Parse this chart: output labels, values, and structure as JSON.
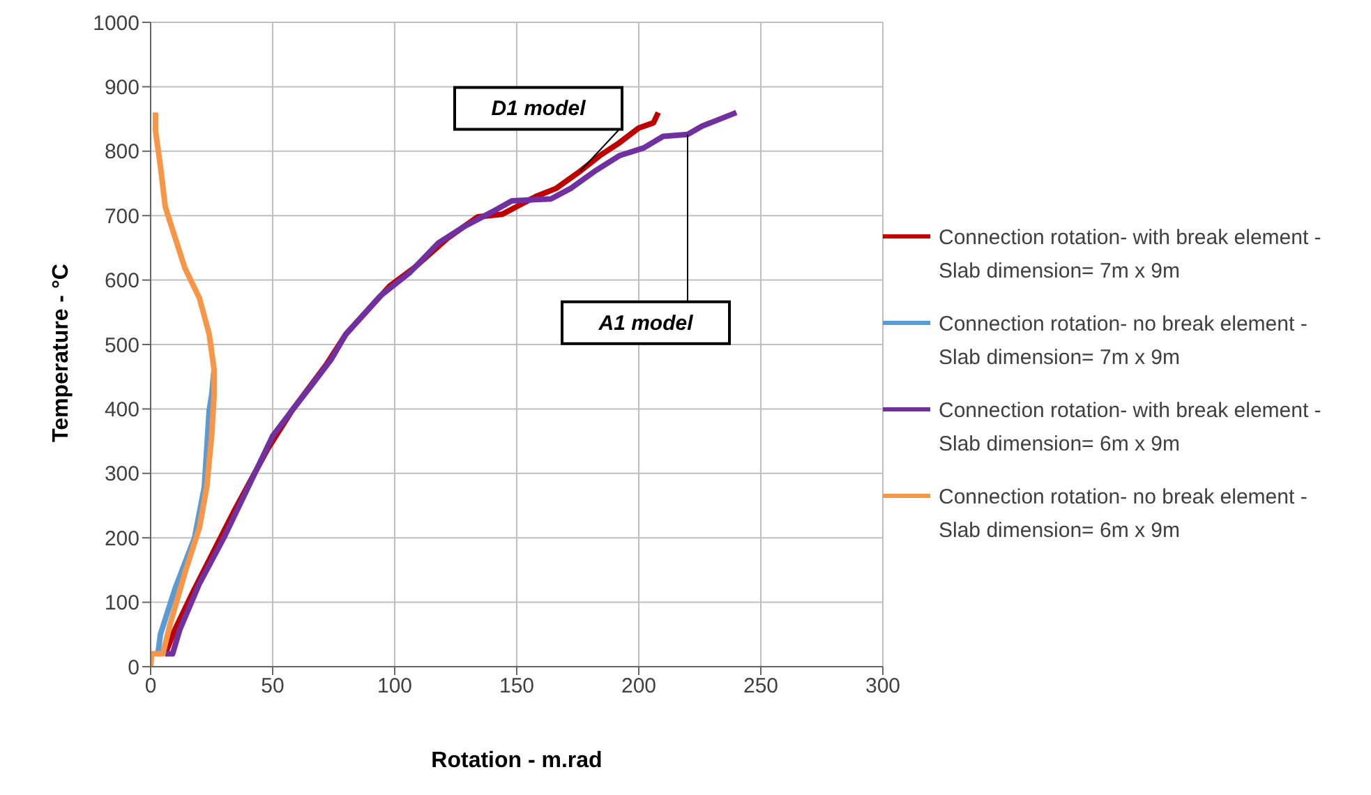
{
  "chart_data": {
    "type": "line",
    "xlabel": "Rotation - m.rad",
    "ylabel": "Temperature - °C",
    "xlim": [
      0,
      300
    ],
    "xticks": [
      0,
      50,
      100,
      150,
      200,
      250,
      300
    ],
    "ylim": [
      0,
      1000
    ],
    "yticks": [
      0,
      100,
      200,
      300,
      400,
      500,
      600,
      700,
      800,
      900,
      1000
    ],
    "grid": true,
    "legend": "right",
    "marker": "none",
    "line_style": "solid",
    "series": [
      {
        "name": "Connection rotation- with break element - Slab dimension= 7m x 9m",
        "color": "#c00000",
        "x": [
          6,
          10,
          18,
          34,
          48,
          58,
          72,
          80,
          98,
          108,
          122,
          134,
          144,
          150,
          158,
          166,
          176,
          184,
          192,
          200,
          206,
          208
        ],
        "values": [
          20,
          58,
          121,
          240,
          338,
          398,
          469,
          516,
          591,
          619,
          666,
          698,
          702,
          714,
          730,
          742,
          769,
          793,
          813,
          836,
          844,
          860
        ]
      },
      {
        "name": "Connection rotation- no break element - Slab dimension= 7m x 9m",
        "color": "#5b9bd5",
        "x": [
          3,
          4,
          10,
          18,
          22,
          24,
          25,
          26
        ],
        "values": [
          20,
          50,
          121,
          200,
          279,
          398,
          421,
          461
        ]
      },
      {
        "name": "Connection rotation- with break element - Slab dimension= 6m x 9m",
        "color": "#7030a0",
        "x": [
          6,
          9,
          12,
          20,
          30,
          40,
          50,
          58,
          66,
          74,
          80,
          94,
          106,
          118,
          128,
          140,
          148,
          164,
          172,
          182,
          192,
          202,
          210,
          220,
          226,
          240
        ],
        "values": [
          20,
          20,
          58,
          129,
          200,
          279,
          358,
          398,
          437,
          477,
          516,
          575,
          611,
          658,
          682,
          706,
          723,
          726,
          742,
          769,
          793,
          805,
          823,
          826,
          839,
          860
        ]
      },
      {
        "name": "Connection rotation- no break element - Slab dimension= 6m x 9m",
        "color": "#f79646",
        "x": [
          0,
          0.4,
          5,
          8,
          14,
          20,
          23,
          25,
          26,
          26,
          24,
          20,
          14,
          8,
          6,
          4,
          2,
          2
        ],
        "values": [
          0,
          20,
          20,
          66,
          145,
          216,
          279,
          358,
          421,
          461,
          516,
          572,
          619,
          690,
          714,
          777,
          832,
          860
        ]
      }
    ],
    "annotations": [
      {
        "text": "D1 model",
        "x": 176,
        "y": 769
      },
      {
        "text": "A1 model",
        "x": 220,
        "y": 826
      }
    ]
  }
}
